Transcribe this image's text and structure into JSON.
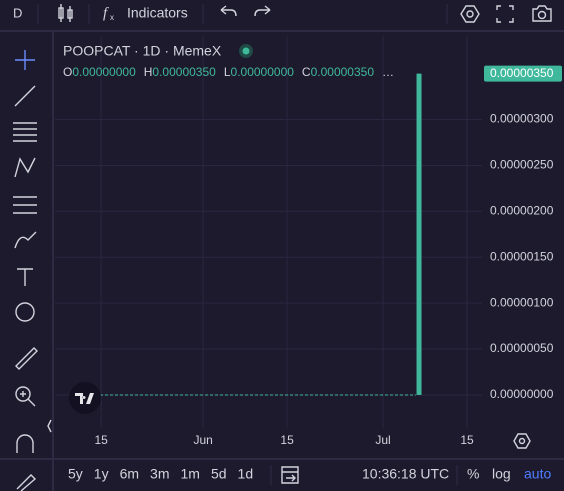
{
  "toolbar": {
    "interval": "D",
    "indicators": "Indicators"
  },
  "chart_data": {
    "type": "candlestick",
    "title": "POOPCAT · 1D · MemeX",
    "ohlc_legend": [
      {
        "key": "O",
        "value": 0,
        "label": "0.00000000"
      },
      {
        "key": "H",
        "value": 3.5e-06,
        "label": "0.00000350"
      },
      {
        "key": "L",
        "value": 0,
        "label": "0.00000000"
      },
      {
        "key": "C",
        "value": 3.5e-06,
        "label": "0.00000350"
      }
    ],
    "x": [
      188
    ],
    "open": [
      0
    ],
    "high": [
      3.5e-06
    ],
    "low": [
      0
    ],
    "close": [
      3.5e-06
    ],
    "color": "#3fb89b",
    "last_price_label": "0.00000350",
    "xlim": [
      127.3,
      198.5
    ],
    "xticks": [
      {
        "value": 135,
        "label": "15"
      },
      {
        "value": 152,
        "label": "Jun"
      },
      {
        "value": 166,
        "label": "15"
      },
      {
        "value": 182,
        "label": "Jul"
      },
      {
        "value": 196,
        "label": "15"
      }
    ],
    "ylim": [
      -3.6e-07,
      3.91e-06
    ],
    "yticks": [
      {
        "value": 0,
        "label": "0.00000000"
      },
      {
        "value": 5e-07,
        "label": "0.00000050"
      },
      {
        "value": 1e-06,
        "label": "0.00000100"
      },
      {
        "value": 1.5e-06,
        "label": "0.00000150"
      },
      {
        "value": 2e-06,
        "label": "0.00000200"
      },
      {
        "value": 2.5e-06,
        "label": "0.00000250"
      },
      {
        "value": 3e-06,
        "label": "0.00000300"
      }
    ],
    "grid": true
  },
  "bottom_bar": {
    "ranges": [
      "5y",
      "1y",
      "6m",
      "3m",
      "1m",
      "5d",
      "1d"
    ],
    "clock": "10:36:18 UTC",
    "percent": "%",
    "log": "log",
    "auto": "auto"
  }
}
